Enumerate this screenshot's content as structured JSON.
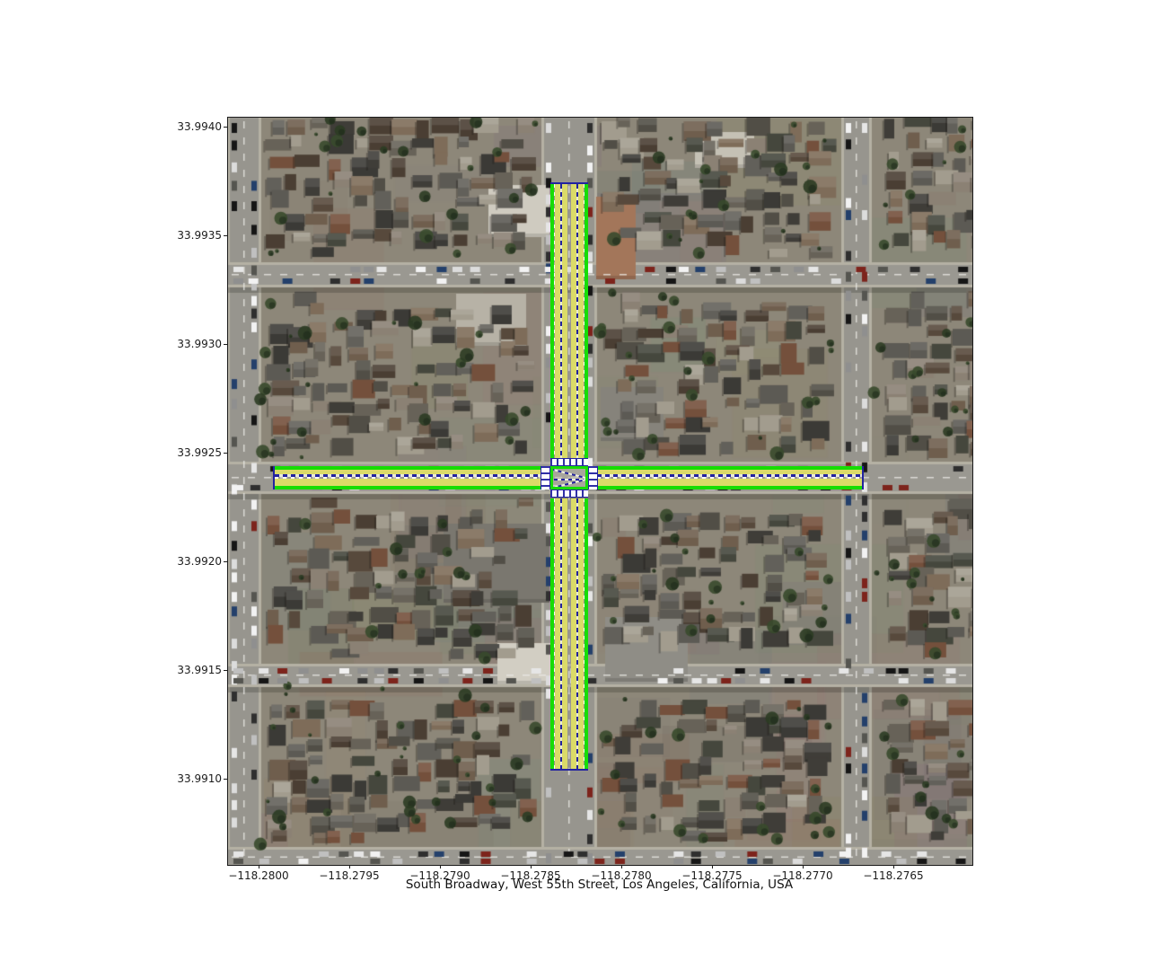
{
  "figure": {
    "caption": "South Broadway, West 55th Street, Los Angeles, California, USA"
  },
  "axes": {
    "y_tick_labels": [
      "33.9940",
      "33.9935",
      "33.9930",
      "33.9925",
      "33.9920",
      "33.9915",
      "33.9910"
    ],
    "x_tick_labels": [
      "−118.2800",
      "−118.2795",
      "−118.2790",
      "−118.2785",
      "−118.2780",
      "−118.2775",
      "−118.2770",
      "−118.2765"
    ]
  },
  "map": {
    "streets": [
      {
        "name": "South Broadway",
        "orientation": "vertical",
        "marked_lanes": 4
      },
      {
        "name": "West 55th Street",
        "orientation": "horizontal",
        "marked_lanes": 2
      }
    ],
    "overlay_colors": {
      "lane_edge_green": "#17dd04",
      "lane_fill_yellow": "#dbdb68",
      "lane_divider_blue": "#2323a0",
      "crosswalk_white": "#ffffff"
    }
  }
}
